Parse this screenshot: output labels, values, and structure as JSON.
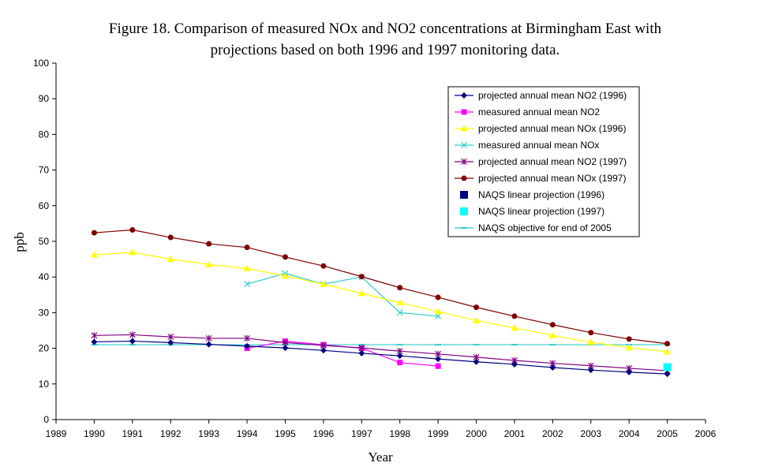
{
  "chart_data": {
    "type": "line",
    "title_line1": "Figure 18. Comparison of measured NOx and NO2 concentrations at Birmingham East with",
    "title_line2": "projections based on both 1996 and 1997 monitoring data.",
    "xlabel": "Year",
    "ylabel": "ppb",
    "xlim": [
      1989,
      2006
    ],
    "ylim": [
      0,
      100
    ],
    "x_ticks": [
      1989,
      1990,
      1991,
      1992,
      1993,
      1994,
      1995,
      1996,
      1997,
      1998,
      1999,
      2000,
      2001,
      2002,
      2003,
      2004,
      2005,
      2006
    ],
    "y_ticks": [
      0,
      10,
      20,
      30,
      40,
      50,
      60,
      70,
      80,
      90,
      100
    ],
    "grid": false,
    "legend_position": "top-right",
    "series": [
      {
        "name": "projected annual mean NO2 (1996)",
        "color": "#000080",
        "marker": "diamond",
        "line": true,
        "x": [
          1990,
          1991,
          1992,
          1993,
          1994,
          1995,
          1996,
          1997,
          1998,
          1999,
          2000,
          2001,
          2002,
          2003,
          2004,
          2005
        ],
        "y": [
          21.8,
          22.0,
          21.6,
          21.1,
          20.6,
          20.1,
          19.4,
          18.6,
          17.9,
          17.0,
          16.2,
          15.5,
          14.6,
          13.9,
          13.3,
          12.8
        ]
      },
      {
        "name": "measured annual mean NO2",
        "color": "#ff00ff",
        "marker": "square",
        "line": true,
        "x": [
          1994,
          1995,
          1996,
          1997,
          1998,
          1999
        ],
        "y": [
          20.0,
          22.0,
          21.0,
          20.0,
          16.0,
          15.0
        ]
      },
      {
        "name": "projected annual mean NOx (1996)",
        "color": "#ffff00",
        "marker": "triangle",
        "line": true,
        "x": [
          1990,
          1991,
          1992,
          1993,
          1994,
          1995,
          1996,
          1997,
          1998,
          1999,
          2000,
          2001,
          2002,
          2003,
          2004,
          2005
        ],
        "y": [
          46.2,
          46.9,
          45.0,
          43.5,
          42.4,
          40.3,
          38.0,
          35.4,
          32.8,
          30.3,
          27.8,
          25.7,
          23.6,
          21.7,
          20.2,
          19.0
        ]
      },
      {
        "name": "measured annual mean NOx",
        "color": "#33cccc",
        "marker": "x",
        "line": true,
        "x": [
          1994,
          1995,
          1996,
          1997,
          1998,
          1999
        ],
        "y": [
          38.0,
          41.0,
          38.0,
          40.0,
          30.0,
          29.0
        ]
      },
      {
        "name": "projected annual mean NO2 (1997)",
        "color": "#800080",
        "marker": "star",
        "line": true,
        "x": [
          1990,
          1991,
          1992,
          1993,
          1994,
          1995,
          1996,
          1997,
          1998,
          1999,
          2000,
          2001,
          2002,
          2003,
          2004,
          2005
        ],
        "y": [
          23.6,
          23.8,
          23.2,
          22.8,
          22.8,
          21.6,
          20.8,
          20.1,
          19.2,
          18.4,
          17.5,
          16.6,
          15.8,
          15.1,
          14.4,
          13.7
        ]
      },
      {
        "name": "projected annual mean NOx (1997)",
        "color": "#800000",
        "marker": "circle",
        "line": true,
        "x": [
          1990,
          1991,
          1992,
          1993,
          1994,
          1995,
          1996,
          1997,
          1998,
          1999,
          2000,
          2001,
          2002,
          2003,
          2004,
          2005
        ],
        "y": [
          52.4,
          53.2,
          51.1,
          49.3,
          48.3,
          45.6,
          43.1,
          40.1,
          37.0,
          34.3,
          31.5,
          29.0,
          26.6,
          24.4,
          22.6,
          21.3
        ]
      },
      {
        "name": "NAQS linear projection (1996)",
        "color": "#000080",
        "marker": "bigsquare",
        "line": false,
        "x": [],
        "y": []
      },
      {
        "name": "NAQS linear projection (1997)",
        "color": "#00ffff",
        "marker": "bigsquare",
        "line": false,
        "x": [
          2005
        ],
        "y": [
          14.7
        ]
      },
      {
        "name": "NAQS objective for end of 2005",
        "color": "#33cccc",
        "marker": "dash",
        "line": true,
        "x": [
          1990,
          1991,
          1992,
          1993,
          1994,
          1995,
          1996,
          1997,
          1998,
          1999,
          2000,
          2001,
          2002,
          2003,
          2004,
          2005
        ],
        "y": [
          21,
          21,
          21,
          21,
          21,
          21,
          21,
          21,
          21,
          21,
          21,
          21,
          21,
          21,
          21,
          21
        ]
      }
    ]
  }
}
